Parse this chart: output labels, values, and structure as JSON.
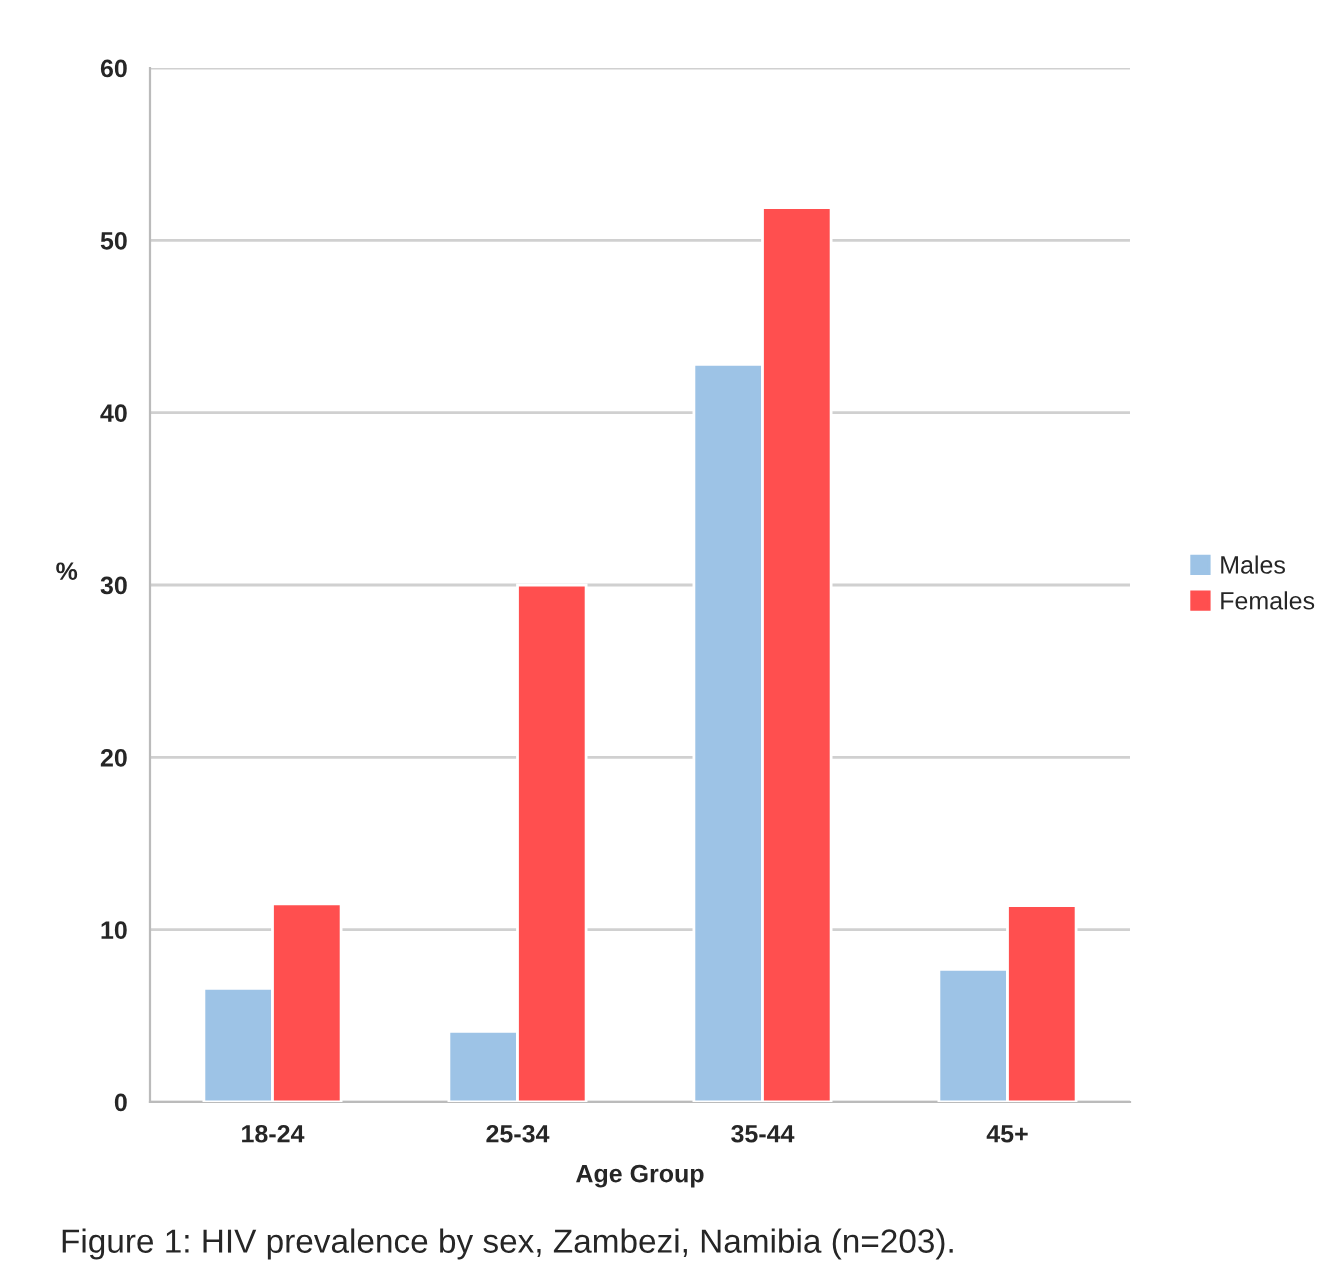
{
  "chart_data": {
    "type": "bar",
    "xlabel": "Age Group",
    "ylabel": "%",
    "categories": [
      "18-24",
      "25-34",
      "35-44",
      "45+"
    ],
    "series": [
      {
        "name": "Males",
        "color": "#9dc3e6",
        "values": [
          6.6,
          4.1,
          42.8,
          7.7
        ]
      },
      {
        "name": "Females",
        "color": "#ff4f4f",
        "values": [
          11.5,
          30,
          51.9,
          11.4
        ]
      }
    ],
    "ylim": [
      0,
      60
    ],
    "yticks": [
      0,
      10,
      20,
      30,
      40,
      50,
      60
    ],
    "grid": "y",
    "legend": "right",
    "annotations": [
      "Figure 1: HIV prevalence by sex, Zambezi, Namibia (n=203)."
    ]
  }
}
